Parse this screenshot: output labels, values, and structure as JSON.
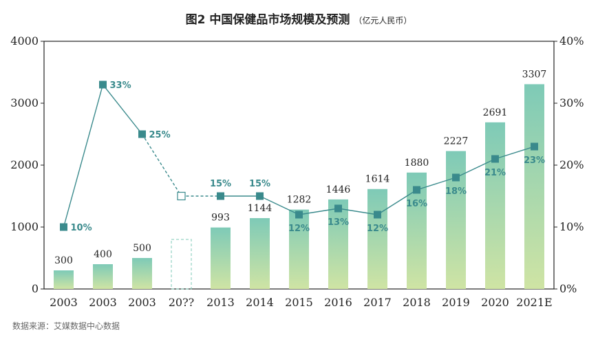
{
  "title": "图2  中国保健品市场规模及预测",
  "title_unit": "（亿元人民币）",
  "source": "数据来源：艾媒数据中心数据",
  "colors": {
    "bar_top": "#7ecab7",
    "bar_bottom": "#cfe4a4",
    "line": "#3a8a8c",
    "axis": "#222222"
  },
  "chart_data": {
    "type": "bar+line",
    "categories": [
      "2003",
      "2003",
      "2003",
      "20??",
      "2013",
      "2014",
      "2015",
      "2016",
      "2017",
      "2018",
      "2019",
      "2020",
      "2021E"
    ],
    "series": [
      {
        "type": "bar",
        "axis": "left",
        "values": [
          300,
          400,
          500,
          800,
          993,
          1144,
          1282,
          1446,
          1614,
          1880,
          2227,
          2691,
          3307
        ],
        "labels": [
          "300",
          "400",
          "500",
          "",
          "993",
          "1144",
          "1282",
          "1446",
          "1614",
          "1880",
          "2227",
          "2691",
          "3307"
        ],
        "placeholder_index": 3
      },
      {
        "type": "line",
        "axis": "right",
        "values": [
          10,
          33,
          25,
          15,
          15,
          15,
          12,
          13,
          12,
          16,
          18,
          21,
          23
        ],
        "labels": [
          "10%",
          "33%",
          "25%",
          "",
          "15%",
          "15%",
          "12%",
          "13%",
          "12%",
          "16%",
          "18%",
          "21%",
          "23%"
        ],
        "placeholder_index": 3
      }
    ],
    "y_left": {
      "min": 0,
      "max": 4000,
      "ticks": [
        "0",
        "1000",
        "2000",
        "3000",
        "4000"
      ]
    },
    "y_right": {
      "min": 0,
      "max": 40,
      "ticks": [
        "0%",
        "10%",
        "20%",
        "30%",
        "40%"
      ]
    },
    "grid": false,
    "legend": "none"
  }
}
